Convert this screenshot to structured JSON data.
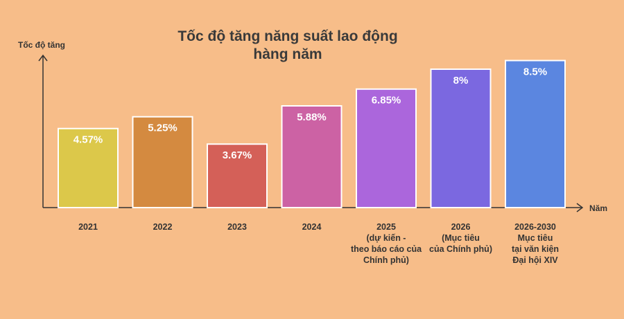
{
  "chart_data": {
    "type": "bar",
    "title": "Tốc độ tăng năng suất lao động\nhàng năm",
    "y_label": "Tốc độ tăng",
    "x_label": "Năm",
    "categories": [
      "2021",
      "2022",
      "2023",
      "2024",
      "2025\n(dự kiến -\ntheo báo cáo của\nChính phủ)",
      "2026\n(Mục tiêu\ncủa Chính phủ)",
      "2026-2030\nMục tiêu\ntại văn kiện\nĐại hội XIV"
    ],
    "values": [
      4.57,
      5.25,
      3.67,
      5.88,
      6.85,
      8,
      8.5
    ],
    "value_labels": [
      "4.57%",
      "5.25%",
      "3.67%",
      "5.88%",
      "6.85%",
      "8%",
      "8.5%"
    ],
    "colors": [
      "#dcc84a",
      "#d48a40",
      "#d46058",
      "#cc62a4",
      "#ab66dc",
      "#7b68e0",
      "#5b86e0"
    ],
    "ylim": [
      0,
      8.8
    ]
  }
}
